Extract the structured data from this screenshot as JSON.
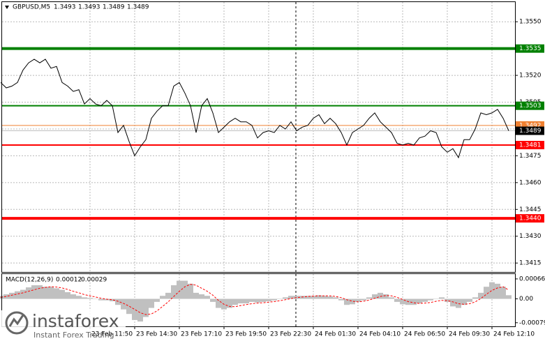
{
  "chart_data": [
    {
      "type": "line",
      "title": "GBPUSD,M5",
      "ohlc": [
        1.3493,
        1.3493,
        1.3489,
        1.3489
      ],
      "color": "#000000",
      "categories": [
        null,
        null,
        null,
        null,
        null,
        null,
        null,
        null,
        null,
        null,
        null,
        null,
        null,
        null,
        null,
        null,
        "23 Feb 11:50",
        null,
        null,
        null,
        null,
        null,
        null,
        null,
        "23 Feb 14:30",
        null,
        null,
        null,
        null,
        null,
        null,
        null,
        "23 Feb 17:10",
        null,
        null,
        null,
        null,
        null,
        null,
        null,
        "23 Feb 19:50",
        null,
        null,
        null,
        null,
        null,
        null,
        null,
        "23 Feb 22:30",
        null,
        null,
        null,
        null,
        null,
        null,
        null,
        "24 Feb 01:30",
        null,
        null,
        null,
        null,
        null,
        null,
        null,
        "24 Feb 04:10",
        null,
        null,
        null,
        null,
        null,
        null,
        null,
        "24 Feb 06:50",
        null,
        null,
        null,
        null,
        null,
        null,
        null,
        "24 Feb 09:30",
        null,
        null,
        null,
        null,
        null,
        null,
        null,
        "24 Feb 12:10",
        null,
        null,
        null
      ],
      "values": [
        1.3516,
        1.3513,
        1.3514,
        1.3516,
        1.3523,
        1.3527,
        1.3529,
        1.3527,
        1.3529,
        1.3524,
        1.3525,
        1.3516,
        1.3514,
        1.3511,
        1.3512,
        1.3504,
        1.3507,
        1.3504,
        1.3503,
        1.3506,
        1.3503,
        1.3488,
        1.3492,
        1.3483,
        1.3475,
        1.348,
        1.3484,
        1.3496,
        1.35,
        1.3503,
        1.3503,
        1.3514,
        1.3516,
        1.351,
        1.3503,
        1.3488,
        1.3503,
        1.3507,
        1.3499,
        1.3488,
        1.3491,
        1.3494,
        1.3496,
        1.3494,
        1.3494,
        1.3492,
        1.3485,
        1.3488,
        1.3489,
        1.3488,
        1.3492,
        1.349,
        1.3494,
        1.3489,
        1.3491,
        1.3492,
        1.3496,
        1.3498,
        1.3493,
        1.3496,
        1.3493,
        1.3488,
        1.3481,
        1.3488,
        1.349,
        1.3492,
        1.3496,
        1.3499,
        1.3494,
        1.3491,
        1.3488,
        1.3482,
        1.3481,
        1.3482,
        1.3481,
        1.3485,
        1.3486,
        1.3489,
        1.3488,
        1.348,
        1.3477,
        1.3479,
        1.3474,
        1.3484,
        1.3484,
        1.349,
        1.3499,
        1.3498,
        1.3499,
        1.3501,
        1.3496,
        1.3489
      ],
      "ylim": [
        1.341,
        1.3561
      ],
      "yticks": [
        {
          "value": 1.3415,
          "label": "1.3415"
        },
        {
          "value": 1.343,
          "label": "1.3430"
        },
        {
          "value": 1.3445,
          "label": "1.3445"
        },
        {
          "value": 1.346,
          "label": "1.3460"
        },
        {
          "value": 1.3475,
          "label": "1.3475"
        },
        {
          "value": 1.349,
          "label": "1.3490"
        },
        {
          "value": 1.3505,
          "label": "1.3505"
        },
        {
          "value": 1.352,
          "label": "1.3520"
        },
        {
          "value": 1.3535,
          "label": "1.3535"
        },
        {
          "value": 1.355,
          "label": "1.3550"
        }
      ],
      "grid": true,
      "levels": [
        {
          "value": 1.3535,
          "label": "1.3535",
          "color": "#008000",
          "weight": "thick"
        },
        {
          "value": 1.3503,
          "label": "1.3503",
          "color": "#008000",
          "weight": "medium"
        },
        {
          "value": 1.3492,
          "label": "1.3492",
          "color": "#f08030",
          "weight": "thin"
        },
        {
          "value": 1.3481,
          "label": "1.3481",
          "color": "#ff0000",
          "weight": "medium"
        },
        {
          "value": 1.344,
          "label": "1.3440",
          "color": "#ff0000",
          "weight": "thick"
        }
      ],
      "current_price": {
        "value": 1.3489,
        "label": "1.3489",
        "color": "#000000"
      }
    },
    {
      "type": "macd",
      "title": "MACD(12,26,9)",
      "series": [
        {
          "type": "bar",
          "color": "#c0c0c0",
          "values": [
            0.0001,
            0.00015,
            0.0002,
            0.00025,
            0.0003,
            0.00038,
            0.00045,
            0.00045,
            0.0004,
            0.0004,
            0.00035,
            0.0003,
            0.00022,
            0.00015,
            0.0001,
            5e-05,
            3e-05,
            0,
            -5e-05,
            -5e-05,
            -8e-05,
            -0.0002,
            -0.00035,
            -0.0005,
            -0.0007,
            -0.00075,
            -0.0006,
            -0.0003,
            -0.0001,
            0.0001,
            0.0002,
            0.00045,
            0.0006,
            0.0006,
            0.0005,
            0.0002,
            0.00015,
            0.0001,
            -0.0001,
            -0.0003,
            -0.00035,
            -0.0003,
            -0.0002,
            -0.00015,
            -0.00015,
            -0.0001,
            -0.00012,
            -0.0001,
            -8e-05,
            -5e-05,
            0,
            5e-05,
            0.0001,
            0.0001,
            0.0001,
            0.0001,
            0.0001,
            0.00012,
            0.0001,
            8e-05,
            5e-05,
            -5e-05,
            -0.0002,
            -0.00018,
            -0.0001,
            -5e-05,
            5e-05,
            0.00015,
            0.0002,
            0.00015,
            5e-05,
            -0.0001,
            -0.00018,
            -0.0002,
            -0.0002,
            -0.00015,
            -0.0001,
            -5e-05,
            0,
            5e-05,
            -0.0001,
            -0.00025,
            -0.0003,
            -0.0002,
            -0.0001,
            5e-05,
            0.0002,
            0.0004,
            0.00055,
            0.0005,
            0.0004,
            0.00012
          ]
        },
        {
          "type": "line",
          "color": "#ff0000",
          "values": [
            5e-05,
            8e-05,
            0.00012,
            0.00016,
            0.0002,
            0.00025,
            0.0003,
            0.00035,
            0.00038,
            0.0004,
            0.00039,
            0.00036,
            0.00031,
            0.00025,
            0.0002,
            0.00014,
            0.0001,
            6e-05,
            2e-05,
            -1e-05,
            -3e-05,
            -8e-05,
            -0.00015,
            -0.00024,
            -0.00035,
            -0.00046,
            -0.00052,
            -0.0005,
            -0.0004,
            -0.00025,
            -0.0001,
            8e-05,
            0.00025,
            0.0004,
            0.00048,
            0.00045,
            0.00035,
            0.00025,
            0.00012,
            -5e-05,
            -0.00018,
            -0.00025,
            -0.00026,
            -0.00022,
            -0.00019,
            -0.00016,
            -0.00014,
            -0.00013,
            -0.00011,
            -9e-05,
            -6e-05,
            -3e-05,
            1e-05,
            4e-05,
            6e-05,
            8e-05,
            9e-05,
            0.0001,
            0.0001,
            0.0001,
            8e-05,
            4e-05,
            -3e-05,
            -8e-05,
            -0.0001,
            -8e-05,
            -4e-05,
            2e-05,
            8e-05,
            0.00011,
            0.0001,
            5e-05,
            -2e-05,
            -9e-05,
            -0.00013,
            -0.00015,
            -0.00014,
            -0.00012,
            -8e-05,
            -5e-05,
            -6e-05,
            -0.0001,
            -0.00016,
            -0.00018,
            -0.00016,
            -0.0001,
            1e-05,
            0.00015,
            0.00028,
            0.00036,
            0.0004,
            0.00029
          ]
        }
      ],
      "ylim": [
        -0.00091,
        0.00082
      ],
      "yticks": [
        -0.00079,
        {
          "value": 0,
          "label": "0.00"
        },
        0.00066
      ]
    }
  ],
  "watermark": {
    "brand": "instaforex",
    "tagline": "Instant Forex Trading"
  }
}
